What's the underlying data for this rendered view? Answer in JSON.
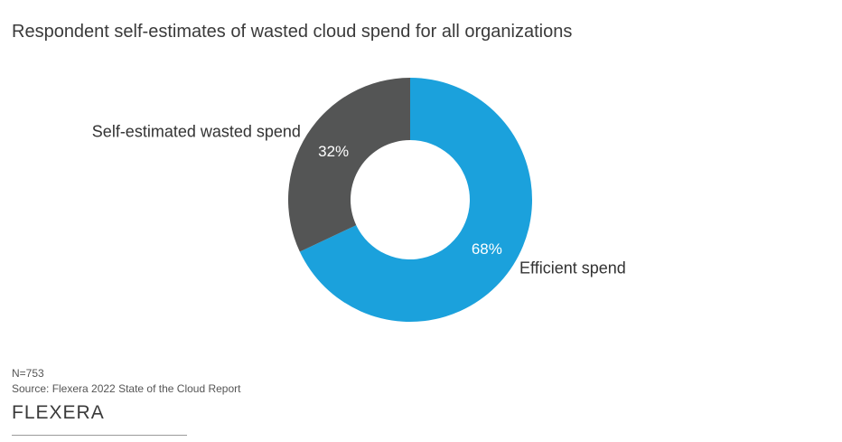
{
  "chart_data": {
    "type": "pie",
    "title": "Respondent self-estimates of wasted cloud spend for all organizations",
    "slices": [
      {
        "label": "Efficient spend",
        "value": 68,
        "value_label": "68%",
        "color": "#1ba1dc"
      },
      {
        "label": "Self-estimated wasted spend",
        "value": 32,
        "value_label": "32%",
        "color": "#545555"
      }
    ],
    "donut": true
  },
  "footer": {
    "sample_size": "N=753",
    "source": "Source: Flexera 2022 State of the Cloud Report",
    "logo_text": "FLEXERA"
  }
}
